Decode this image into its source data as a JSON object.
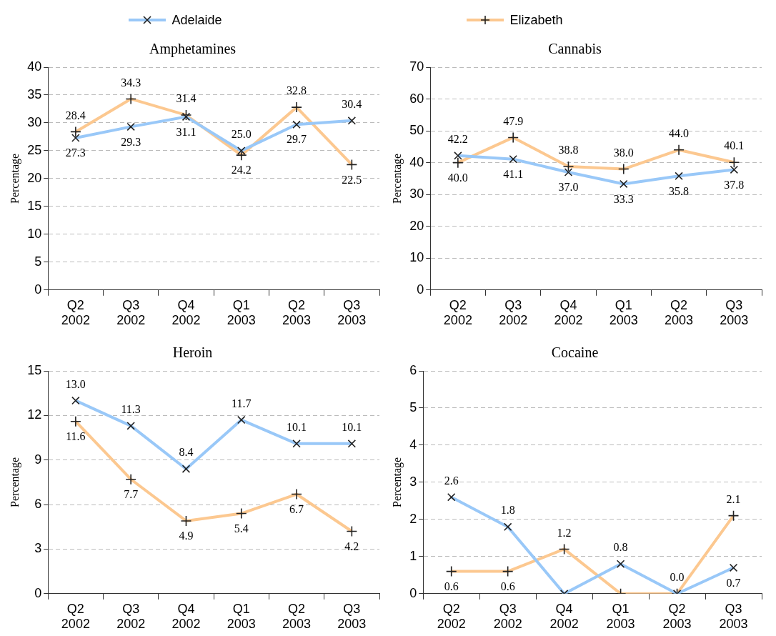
{
  "chart_data": [
    {
      "type": "line",
      "title": "Amphetamines",
      "ylabel": "Percentage",
      "categories": [
        "Q2 2002",
        "Q3 2002",
        "Q4 2002",
        "Q1 2003",
        "Q2 2003",
        "Q3 2003"
      ],
      "ylim": [
        0,
        40
      ],
      "yticks": [
        0,
        5,
        10,
        15,
        20,
        25,
        30,
        35,
        40
      ],
      "grid": "y",
      "legend": "top",
      "series": [
        {
          "name": "Adelaide",
          "color": "#99c8f8",
          "marker": "cross",
          "values": [
            27.3,
            29.3,
            31.1,
            25.0,
            29.7,
            30.4
          ],
          "value_labels": [
            "27.3",
            "29.3",
            "31.1",
            "25.0",
            "29.7",
            "30.4"
          ]
        },
        {
          "name": "Elizabeth",
          "color": "#fcc890",
          "marker": "plus",
          "values": [
            28.4,
            34.3,
            31.4,
            24.2,
            32.8,
            22.5
          ],
          "value_labels": [
            "28.4",
            "34.3",
            "31.4",
            "24.2",
            "32.8",
            "22.5"
          ]
        }
      ]
    },
    {
      "type": "line",
      "title": "Cannabis",
      "ylabel": "Percentage",
      "categories": [
        "Q2 2002",
        "Q3 2002",
        "Q4 2002",
        "Q1 2003",
        "Q2 2003",
        "Q3 2003"
      ],
      "ylim": [
        0,
        70
      ],
      "yticks": [
        0,
        10,
        20,
        30,
        40,
        50,
        60,
        70
      ],
      "grid": "y",
      "series": [
        {
          "color": "#99c8f8",
          "marker": "cross",
          "values": [
            42.2,
            41.1,
            37.0,
            33.3,
            35.8,
            37.8
          ],
          "value_labels": [
            "42.2",
            "41.1",
            "37.0",
            "33.3",
            "35.8",
            "37.8"
          ]
        },
        {
          "color": "#fcc890",
          "marker": "plus",
          "values": [
            40.0,
            47.9,
            38.8,
            38.0,
            44.0,
            40.1
          ],
          "value_labels": [
            "40.0",
            "47.9",
            "38.8",
            "38.0",
            "44.0",
            "40.1"
          ]
        }
      ]
    },
    {
      "type": "line",
      "title": "Heroin",
      "ylabel": "Percentage",
      "categories": [
        "Q2 2002",
        "Q3 2002",
        "Q4 2002",
        "Q1 2003",
        "Q2 2003",
        "Q3 2003"
      ],
      "ylim": [
        0,
        15
      ],
      "yticks": [
        0,
        3,
        6,
        9,
        12,
        15
      ],
      "grid": "y",
      "series": [
        {
          "color": "#99c8f8",
          "marker": "cross",
          "values": [
            13.0,
            11.3,
            8.4,
            11.7,
            10.1,
            10.1
          ],
          "value_labels": [
            "13.0",
            "11.3",
            "8.4",
            "11.7",
            "10.1",
            "10.1"
          ]
        },
        {
          "color": "#fcc890",
          "marker": "plus",
          "values": [
            11.6,
            7.7,
            4.9,
            5.4,
            6.7,
            4.2
          ],
          "value_labels": [
            "11.6",
            "7.7",
            "4.9",
            "5.4",
            "6.7",
            "4.2"
          ]
        }
      ]
    },
    {
      "type": "line",
      "title": "Cocaine",
      "ylabel": "Percentage",
      "categories": [
        "Q2 2002",
        "Q3 2002",
        "Q4 2002",
        "Q1 2003",
        "Q2 2003",
        "Q3 2003"
      ],
      "ylim": [
        0,
        6
      ],
      "yticks": [
        0,
        1,
        2,
        3,
        4,
        5,
        6
      ],
      "grid": "y",
      "series": [
        {
          "color": "#99c8f8",
          "marker": "cross",
          "values": [
            2.6,
            1.8,
            0,
            0.8,
            0,
            0.7
          ],
          "value_labels": [
            "2.6",
            "1.8",
            null,
            "0.8",
            "0.0",
            "0.7"
          ]
        },
        {
          "color": "#fcc890",
          "marker": "plus",
          "values": [
            0.6,
            0.6,
            1.2,
            0,
            0,
            2.1
          ],
          "value_labels": [
            "0.6",
            "0.6",
            "1.2",
            null,
            null,
            "2.1"
          ]
        }
      ]
    }
  ]
}
